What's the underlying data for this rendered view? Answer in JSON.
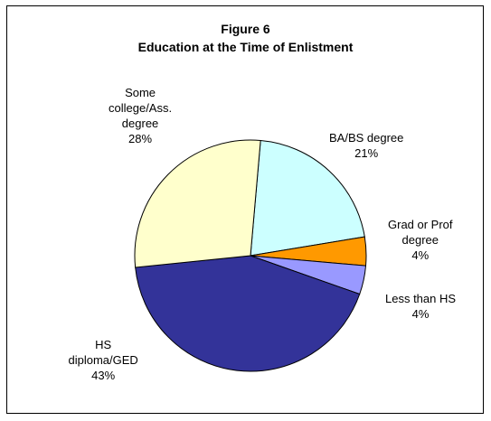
{
  "chart_data": {
    "type": "pie",
    "title": "Figure 6",
    "subtitle": "Education at the Time of Enlistment",
    "slices": [
      {
        "name": "BA/BS degree",
        "value": 21,
        "label": "21%",
        "color": "#ccffff"
      },
      {
        "name": "Grad or Prof degree",
        "value": 4,
        "label": "4%",
        "color": "#ff9900"
      },
      {
        "name": "Less than HS",
        "value": 4,
        "label": "4%",
        "color": "#9999ff"
      },
      {
        "name": "HS diploma/GED",
        "value": 43,
        "label": "43%",
        "color": "#333399"
      },
      {
        "name": "Some college/Ass. degree",
        "value": 28,
        "label": "28%",
        "color": "#ffffcc"
      }
    ],
    "label_text": [
      "BA/BS degree",
      "Grad or Prof\ndegree",
      "Less than HS",
      "HS\ndiploma/GED",
      "Some\ncollege/Ass.\ndegree"
    ],
    "legend": "none"
  }
}
